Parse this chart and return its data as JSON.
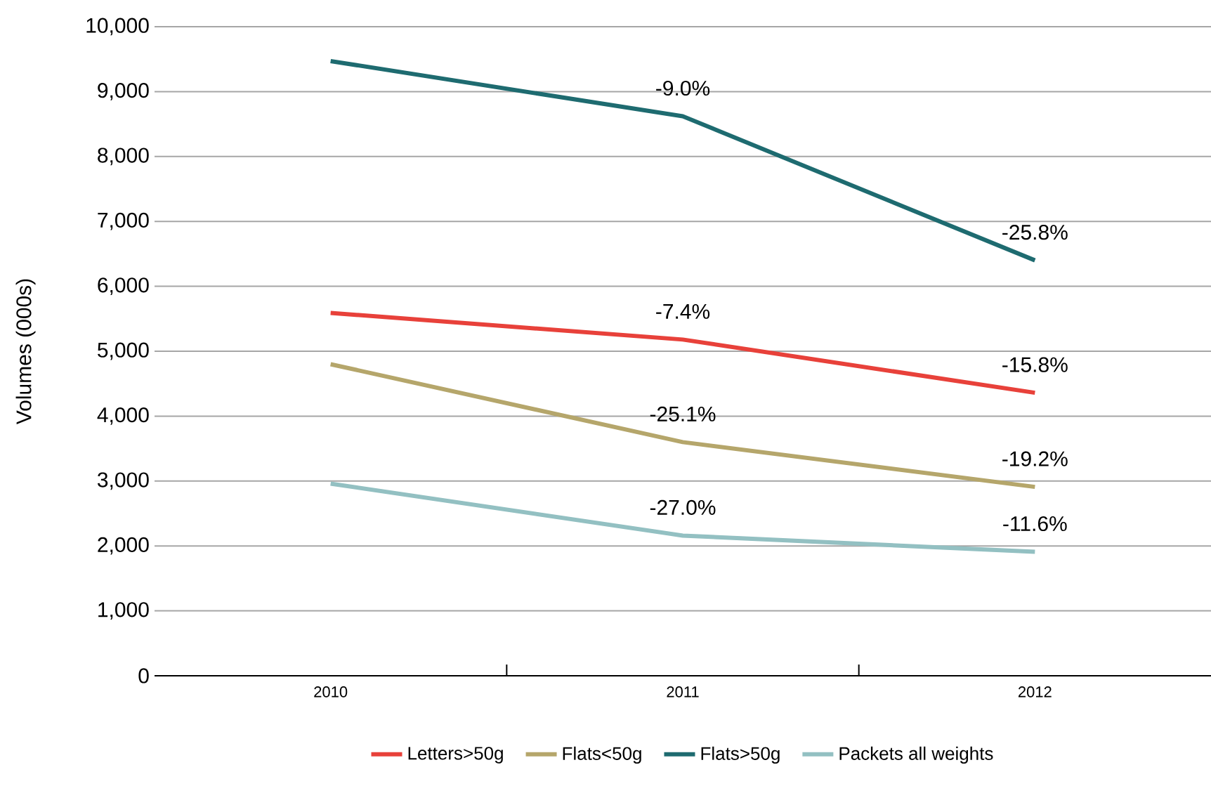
{
  "chart_data": {
    "type": "line",
    "ylabel": "Volumes (000s)",
    "categories": [
      "2010",
      "2011",
      "2012"
    ],
    "series": [
      {
        "name": "Letters>50g",
        "color": "#e8413a",
        "values": [
          5590,
          5180,
          4360
        ]
      },
      {
        "name": "Flats<50g",
        "color": "#b5a66b",
        "values": [
          4800,
          3600,
          2910
        ]
      },
      {
        "name": "Flats>50g",
        "color": "#1e6b70",
        "values": [
          9470,
          8620,
          6400
        ]
      },
      {
        "name": "Packets all weights",
        "color": "#93c0c2",
        "values": [
          2960,
          2160,
          1910
        ]
      }
    ],
    "ylim": [
      0,
      10000
    ],
    "yticks": [
      {
        "value": 0,
        "label": "0"
      },
      {
        "value": 1000,
        "label": "1,000"
      },
      {
        "value": 2000,
        "label": "2,000"
      },
      {
        "value": 3000,
        "label": "3,000"
      },
      {
        "value": 4000,
        "label": "4,000"
      },
      {
        "value": 5000,
        "label": "5,000"
      },
      {
        "value": 6000,
        "label": "6,000"
      },
      {
        "value": 7000,
        "label": "7,000"
      },
      {
        "value": 8000,
        "label": "8,000"
      },
      {
        "value": 9000,
        "label": "9,000"
      },
      {
        "value": 10000,
        "label": "10,000"
      }
    ],
    "grid": "y",
    "legend": "bottom",
    "marker": "none",
    "line_style": "solid",
    "annotations": [
      {
        "text": "-7.4%",
        "x": "2011",
        "y": 5180
      },
      {
        "text": "-15.8%",
        "x": "2012",
        "y": 4360
      },
      {
        "text": "-25.1%",
        "x": "2011",
        "y": 3600
      },
      {
        "text": "-19.2%",
        "x": "2012",
        "y": 2910
      },
      {
        "text": "-9.0%",
        "x": "2011",
        "y": 8620
      },
      {
        "text": "-25.8%",
        "x": "2012",
        "y": 6400
      },
      {
        "text": "-27.0%",
        "x": "2011",
        "y": 2160
      },
      {
        "text": "-11.6%",
        "x": "2012",
        "y": 1910
      }
    ]
  }
}
